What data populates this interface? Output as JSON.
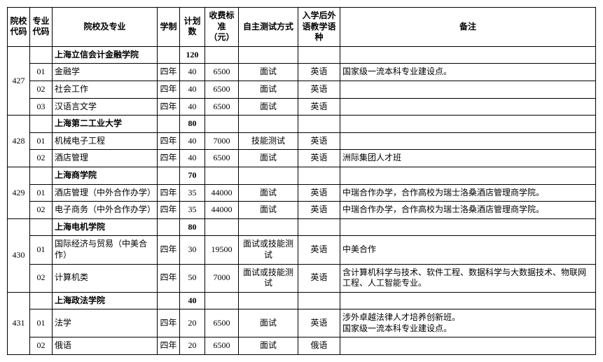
{
  "headers": {
    "school_code": "院校代码",
    "major_code": "专业代码",
    "name": "院校及专业",
    "duration": "学制",
    "plan": "计划数",
    "fee": "收费标准（元）",
    "test": "自主测试方式",
    "lang": "入学后外语教学语种",
    "note": "备注"
  },
  "blocks": [
    {
      "code": "427",
      "school": "上海立信会计金融学院",
      "total_plan": "120",
      "majors": [
        {
          "code": "01",
          "name": "金融学",
          "dur": "四年",
          "plan": "40",
          "fee": "6500",
          "test": "面试",
          "lang": "英语",
          "note": "国家级一流本科专业建设点。"
        },
        {
          "code": "02",
          "name": "社会工作",
          "dur": "四年",
          "plan": "40",
          "fee": "6500",
          "test": "面试",
          "lang": "英语",
          "note": ""
        },
        {
          "code": "03",
          "name": "汉语言文学",
          "dur": "四年",
          "plan": "40",
          "fee": "6500",
          "test": "面试",
          "lang": "英语",
          "note": ""
        }
      ]
    },
    {
      "code": "428",
      "school": "上海第二工业大学",
      "total_plan": "80",
      "majors": [
        {
          "code": "01",
          "name": "机械电子工程",
          "dur": "四年",
          "plan": "40",
          "fee": "7000",
          "test": "技能测试",
          "lang": "英语",
          "note": ""
        },
        {
          "code": "02",
          "name": "酒店管理",
          "dur": "四年",
          "plan": "40",
          "fee": "6500",
          "test": "面试",
          "lang": "英语",
          "note": "洲际集团人才班"
        }
      ]
    },
    {
      "code": "429",
      "school": "上海商学院",
      "total_plan": "70",
      "majors": [
        {
          "code": "01",
          "name": "酒店管理（中外合作办学）",
          "dur": "四年",
          "plan": "35",
          "fee": "44000",
          "test": "面试",
          "lang": "英语",
          "note": "中瑞合作办学，合作高校为瑞士洛桑酒店管理商学院。"
        },
        {
          "code": "02",
          "name": "电子商务（中外合作办学）",
          "dur": "四年",
          "plan": "35",
          "fee": "44000",
          "test": "面试",
          "lang": "英语",
          "note": "中瑞合作办学，合作高校为瑞士洛桑酒店管理商学院。"
        }
      ]
    },
    {
      "code": "430",
      "school": "上海电机学院",
      "total_plan": "80",
      "majors": [
        {
          "code": "01",
          "name": "国际经济与贸易（中美合作）",
          "dur": "四年",
          "plan": "30",
          "fee": "19500",
          "test": "面试或技能测试",
          "lang": "英语",
          "note": "中美合作"
        },
        {
          "code": "02",
          "name": "计算机类",
          "dur": "四年",
          "plan": "50",
          "fee": "7000",
          "test": "面试或技能测试",
          "lang": "英语",
          "note": "含计算机科学与技术、软件工程、数据科学与大数据技术、物联网工程、人工智能专业。"
        }
      ]
    },
    {
      "code": "431",
      "school": "上海政法学院",
      "total_plan": "40",
      "majors": [
        {
          "code": "01",
          "name": "法学",
          "dur": "四年",
          "plan": "20",
          "fee": "6500",
          "test": "面试",
          "lang": "英语",
          "note": "涉外卓越法律人才培养创新班。\n国家级一流本科专业建设点。"
        },
        {
          "code": "02",
          "name": "俄语",
          "dur": "四年",
          "plan": "20",
          "fee": "6500",
          "test": "面试",
          "lang": "俄语",
          "note": ""
        }
      ]
    }
  ]
}
